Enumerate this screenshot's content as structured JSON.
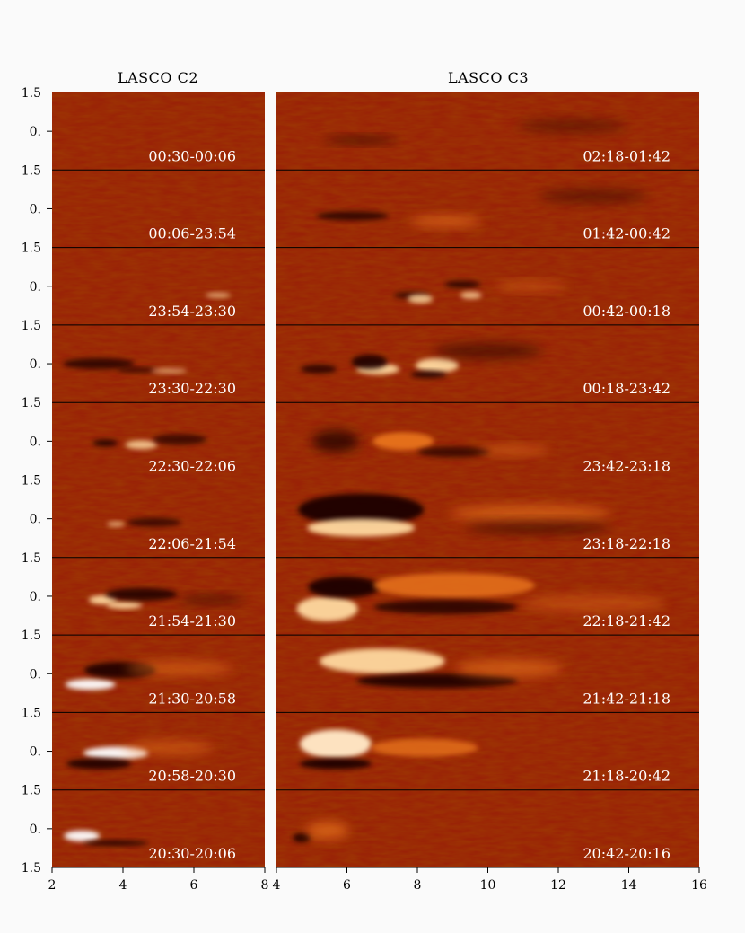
{
  "c2": {
    "title": "LASCO C2",
    "x_ticks": [
      "2",
      "4",
      "6",
      "8"
    ],
    "x_range": [
      2,
      8
    ],
    "times": [
      "00:30-00:06",
      "00:06-23:54",
      "23:54-23:30",
      "23:30-22:30",
      "22:30-22:06",
      "22:06-21:54",
      "21:54-21:30",
      "21:30-20:58",
      "20:58-20:30",
      "20:30-20:06"
    ]
  },
  "c3": {
    "title": "LASCO C3",
    "x_ticks": [
      "4",
      "6",
      "8",
      "10",
      "12",
      "14",
      "16"
    ],
    "x_range": [
      4,
      16
    ],
    "times": [
      "02:18-01:42",
      "01:42-00:42",
      "00:42-00:18",
      "00:18-23:42",
      "23:42-23:18",
      "23:18-22:18",
      "22:18-21:42",
      "21:42-21:18",
      "21:18-20:42",
      "20:42-20:16"
    ]
  },
  "y_labels": {
    "top": "1.5",
    "center": "0."
  },
  "colors": {
    "background": "#fafafa",
    "panel_base": "#9a2206",
    "bright": "#ffd9a0",
    "dark": "#1a0500",
    "label": "#ffffff"
  }
}
